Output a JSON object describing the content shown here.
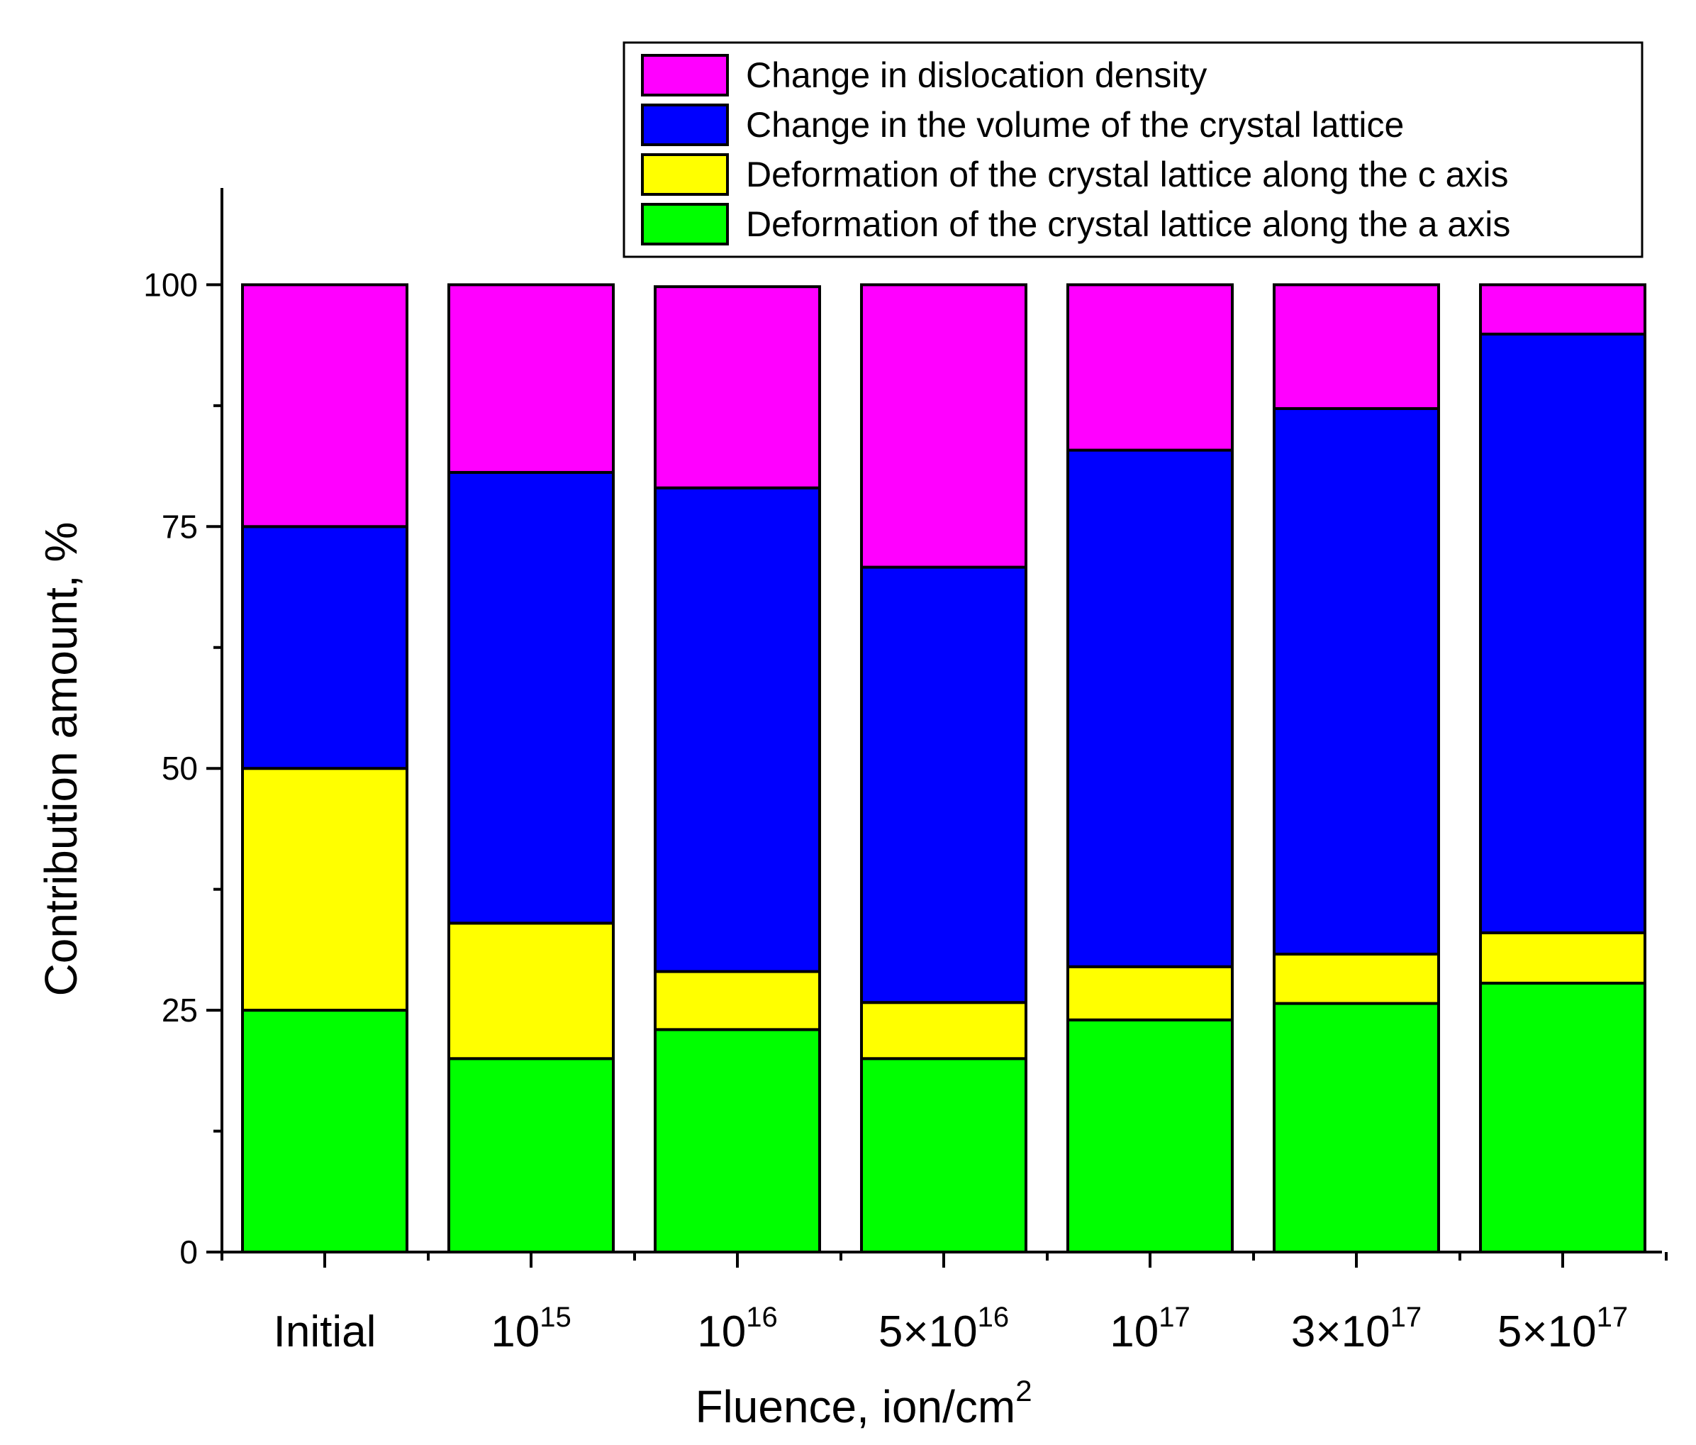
{
  "chart_data": {
    "type": "bar",
    "stacked": true,
    "categories": [
      {
        "base": "Initial",
        "exp": ""
      },
      {
        "base": "10",
        "exp": "15"
      },
      {
        "base": "10",
        "exp": "16"
      },
      {
        "base": "5×10",
        "exp": "16"
      },
      {
        "base": "10",
        "exp": "17"
      },
      {
        "base": "3×10",
        "exp": "17"
      },
      {
        "base": "5×10",
        "exp": "17"
      }
    ],
    "series": [
      {
        "name": "Deformation of the crystal lattice along the a axis",
        "color": "#00ff00",
        "values": [
          25,
          20,
          23,
          20,
          24,
          25.7,
          27.8
        ]
      },
      {
        "name": "Deformation of the crystal lattice along the c axis",
        "color": "#ffff00",
        "values": [
          25,
          14,
          6,
          5.8,
          5.5,
          5.1,
          5.2
        ]
      },
      {
        "name": "Change in the volume of the crystal lattice",
        "color": "#0000ff",
        "values": [
          25,
          46.6,
          50,
          45,
          53.4,
          56.4,
          61.9
        ]
      },
      {
        "name": "Change in dislocation density",
        "color": "#ff00ff",
        "values": [
          25,
          19.4,
          20.8,
          29.2,
          17.1,
          12.8,
          5.1
        ]
      }
    ],
    "legend_order": [
      3,
      2,
      1,
      0
    ],
    "legend_position": "top-right",
    "xlabel": {
      "base": "Fluence, ion/cm",
      "exp": "2"
    },
    "ylabel": "Contribution amount, %",
    "ylim": [
      0,
      110
    ],
    "yticks": [
      0,
      25,
      50,
      75,
      100
    ],
    "grid": false
  }
}
